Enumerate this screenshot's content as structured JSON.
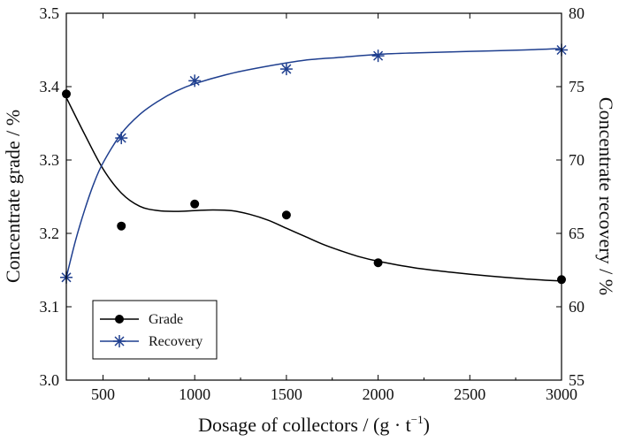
{
  "chart_data": {
    "type": "line",
    "xlabel": "Dosage of collectors / (g · t⁻¹)",
    "xlabel_base": "Dosage of collectors / (g · t",
    "xlabel_exp": "−1",
    "xlabel_close": ")",
    "ylabel_left": "Concentrate grade / %",
    "ylabel_right": "Concentrate recovery / %",
    "xlim": [
      300,
      3000
    ],
    "ylim_left": [
      3.0,
      3.5
    ],
    "ylim_right": [
      55,
      80
    ],
    "x_ticks": [
      500,
      1000,
      1500,
      2000,
      2500,
      3000
    ],
    "y_left_ticks": [
      "3.0",
      "3.1",
      "3.2",
      "3.3",
      "3.4",
      "3.5"
    ],
    "y_right_ticks": [
      "55",
      "60",
      "65",
      "70",
      "75",
      "80"
    ],
    "legend_position": "bottom-left",
    "series": [
      {
        "name": "Grade",
        "axis": "left",
        "marker": "circle",
        "color": "#000000",
        "x": [
          300,
          600,
          1000,
          1500,
          2000,
          3000
        ],
        "y": [
          3.39,
          3.21,
          3.24,
          3.225,
          3.16,
          3.137
        ],
        "fit_x": [
          300,
          400,
          500,
          600,
          700,
          800,
          900,
          1000,
          1100,
          1200,
          1300,
          1400,
          1500,
          1600,
          1700,
          1800,
          1900,
          2000,
          2200,
          2400,
          2600,
          2800,
          3000
        ],
        "fit_y": [
          3.385,
          3.335,
          3.288,
          3.255,
          3.237,
          3.231,
          3.23,
          3.231,
          3.232,
          3.231,
          3.226,
          3.218,
          3.207,
          3.196,
          3.185,
          3.176,
          3.168,
          3.162,
          3.153,
          3.147,
          3.142,
          3.138,
          3.135
        ]
      },
      {
        "name": "Recovery",
        "axis": "right",
        "marker": "asterisk",
        "color": "#1f3f8f",
        "x": [
          300,
          600,
          1000,
          1500,
          2000,
          3000
        ],
        "y": [
          62.0,
          71.5,
          75.4,
          76.2,
          77.1,
          77.5
        ],
        "fit_x": [
          300,
          350,
          400,
          450,
          500,
          600,
          700,
          800,
          900,
          1000,
          1200,
          1400,
          1600,
          1800,
          2000,
          2200,
          2500,
          2800,
          3000
        ],
        "fit_y": [
          62.0,
          64.5,
          66.6,
          68.4,
          69.8,
          71.8,
          73.1,
          74.0,
          74.7,
          75.2,
          75.9,
          76.4,
          76.8,
          77.0,
          77.2,
          77.3,
          77.4,
          77.5,
          77.6
        ]
      }
    ]
  }
}
